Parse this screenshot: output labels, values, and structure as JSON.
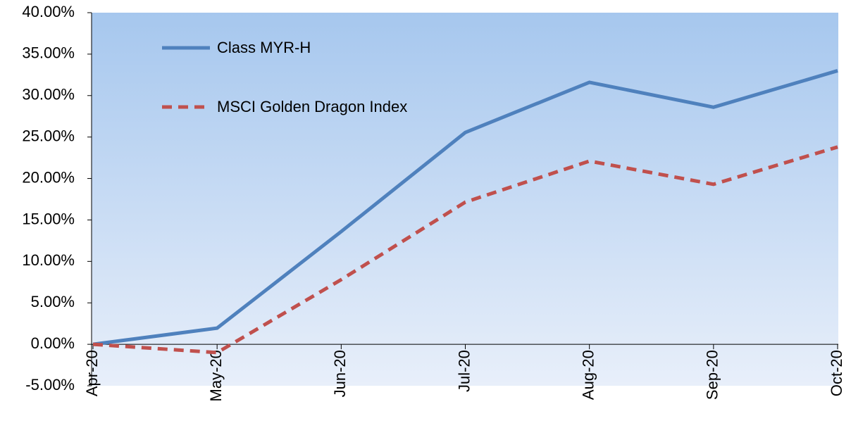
{
  "chart_data": {
    "type": "line",
    "categories": [
      "Apr-20",
      "May-20",
      "Jun-20",
      "Jul-20",
      "Aug-20",
      "Sep-20",
      "Oct-20"
    ],
    "series": [
      {
        "name": "Class MYR-H",
        "color": "#4f81bd",
        "dash": false,
        "values": [
          0,
          1.95,
          13.6,
          25.55,
          31.6,
          28.6,
          33.0
        ]
      },
      {
        "name": "MSCI Golden Dragon Index",
        "color": "#c0504d",
        "dash": true,
        "values": [
          0,
          -1.0,
          7.8,
          17.15,
          22.1,
          19.3,
          23.8
        ]
      }
    ],
    "ylim": [
      -5,
      40
    ],
    "yticks": [
      {
        "value": -5,
        "label": "-5.00%"
      },
      {
        "value": 0,
        "label": "0.00%"
      },
      {
        "value": 5,
        "label": "5.00%"
      },
      {
        "value": 10,
        "label": "10.00%"
      },
      {
        "value": 15,
        "label": "15.00%"
      },
      {
        "value": 20,
        "label": "20.00%"
      },
      {
        "value": 25,
        "label": "25.00%"
      },
      {
        "value": 30,
        "label": "30.00%"
      },
      {
        "value": 35,
        "label": "35.00%"
      },
      {
        "value": 40,
        "label": "40.00%"
      }
    ],
    "grid": false,
    "legend": "upper left"
  }
}
